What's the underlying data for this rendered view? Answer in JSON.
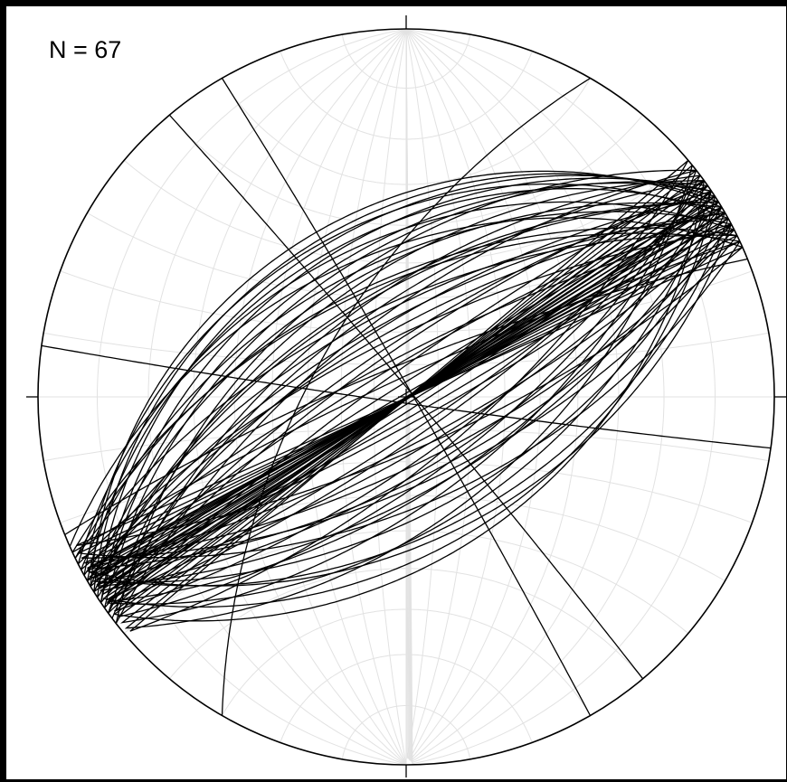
{
  "annotation": {
    "n_label": "N = 67"
  },
  "colors": {
    "net_grid": "#e2e2e2",
    "primitive": "#000000",
    "planes": "#000000"
  },
  "chart_data": {
    "type": "stereonet",
    "projection": "equal-angle",
    "grid_interval_deg": 10,
    "count": 67,
    "great_circles": [
      {
        "strike": 238,
        "dip": 38
      },
      {
        "strike": 240,
        "dip": 42
      },
      {
        "strike": 236,
        "dip": 46
      },
      {
        "strike": 242,
        "dip": 50
      },
      {
        "strike": 234,
        "dip": 54
      },
      {
        "strike": 238,
        "dip": 58
      },
      {
        "strike": 244,
        "dip": 62
      },
      {
        "strike": 232,
        "dip": 66
      },
      {
        "strike": 240,
        "dip": 70
      },
      {
        "strike": 236,
        "dip": 74
      },
      {
        "strike": 242,
        "dip": 78
      },
      {
        "strike": 234,
        "dip": 82
      },
      {
        "strike": 238,
        "dip": 86
      },
      {
        "strike": 240,
        "dip": 89
      },
      {
        "strike": 58,
        "dip": 88
      },
      {
        "strike": 60,
        "dip": 84
      },
      {
        "strike": 56,
        "dip": 80
      },
      {
        "strike": 62,
        "dip": 76
      },
      {
        "strike": 54,
        "dip": 72
      },
      {
        "strike": 58,
        "dip": 68
      },
      {
        "strike": 64,
        "dip": 64
      },
      {
        "strike": 52,
        "dip": 60
      },
      {
        "strike": 60,
        "dip": 56
      },
      {
        "strike": 56,
        "dip": 52
      },
      {
        "strike": 62,
        "dip": 48
      },
      {
        "strike": 54,
        "dip": 44
      },
      {
        "strike": 237,
        "dip": 40
      },
      {
        "strike": 243,
        "dip": 44
      },
      {
        "strike": 235,
        "dip": 48
      },
      {
        "strike": 239,
        "dip": 52
      },
      {
        "strike": 245,
        "dip": 56
      },
      {
        "strike": 233,
        "dip": 60
      },
      {
        "strike": 241,
        "dip": 64
      },
      {
        "strike": 237,
        "dip": 68
      },
      {
        "strike": 243,
        "dip": 72
      },
      {
        "strike": 235,
        "dip": 76
      },
      {
        "strike": 239,
        "dip": 80
      },
      {
        "strike": 245,
        "dip": 84
      },
      {
        "strike": 57,
        "dip": 86
      },
      {
        "strike": 61,
        "dip": 82
      },
      {
        "strike": 55,
        "dip": 78
      },
      {
        "strike": 59,
        "dip": 74
      },
      {
        "strike": 63,
        "dip": 70
      },
      {
        "strike": 53,
        "dip": 66
      },
      {
        "strike": 59,
        "dip": 62
      },
      {
        "strike": 65,
        "dip": 58
      },
      {
        "strike": 51,
        "dip": 54
      },
      {
        "strike": 61,
        "dip": 50
      },
      {
        "strike": 57,
        "dip": 46
      },
      {
        "strike": 239,
        "dip": 36
      },
      {
        "strike": 241,
        "dip": 39
      },
      {
        "strike": 236,
        "dip": 43
      },
      {
        "strike": 246,
        "dip": 47
      },
      {
        "strike": 232,
        "dip": 51
      },
      {
        "strike": 244,
        "dip": 55
      },
      {
        "strike": 238,
        "dip": 59
      },
      {
        "strike": 234,
        "dip": 63
      },
      {
        "strike": 240,
        "dip": 67
      },
      {
        "strike": 66,
        "dip": 74
      },
      {
        "strike": 50,
        "dip": 70
      },
      {
        "strike": 62,
        "dip": 66
      },
      {
        "strike": 56,
        "dip": 62
      },
      {
        "strike": 248,
        "dip": 80
      },
      {
        "strike": 330,
        "dip": 88
      },
      {
        "strike": 320,
        "dip": 88
      },
      {
        "strike": 98,
        "dip": 88
      },
      {
        "strike": 210,
        "dip": 62
      }
    ]
  }
}
